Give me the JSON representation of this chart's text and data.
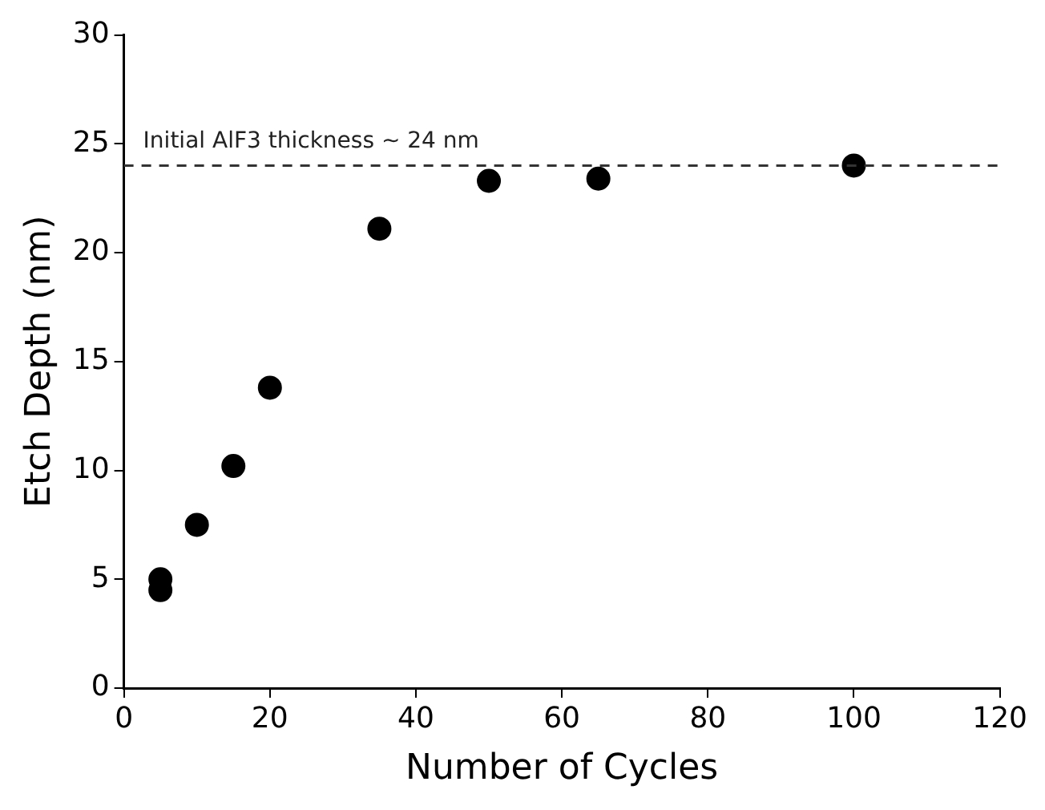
{
  "chart_data": {
    "type": "scatter",
    "xlabel": "Number of Cycles",
    "ylabel": "Etch Depth (nm)",
    "x": [
      5,
      5,
      10,
      15,
      20,
      35,
      50,
      65,
      100
    ],
    "series": [
      {
        "color": "#000000",
        "values": [
          5.0,
          4.5,
          7.5,
          10.2,
          13.8,
          21.1,
          23.3,
          23.4,
          24.0
        ]
      }
    ],
    "xlim": [
      0,
      120
    ],
    "xticks": [
      0,
      20,
      40,
      60,
      80,
      100,
      120
    ],
    "ylim": [
      0,
      30
    ],
    "yticks": [
      0,
      5,
      10,
      15,
      20,
      25,
      30
    ],
    "ref_lines": [
      {
        "axis": "y",
        "value": 24,
        "label": "Initial AlF3 thickness ~ 24 nm",
        "color": "#333333",
        "line_style": "dashed"
      }
    ],
    "grid": false,
    "legend": false,
    "marker": "circle"
  }
}
